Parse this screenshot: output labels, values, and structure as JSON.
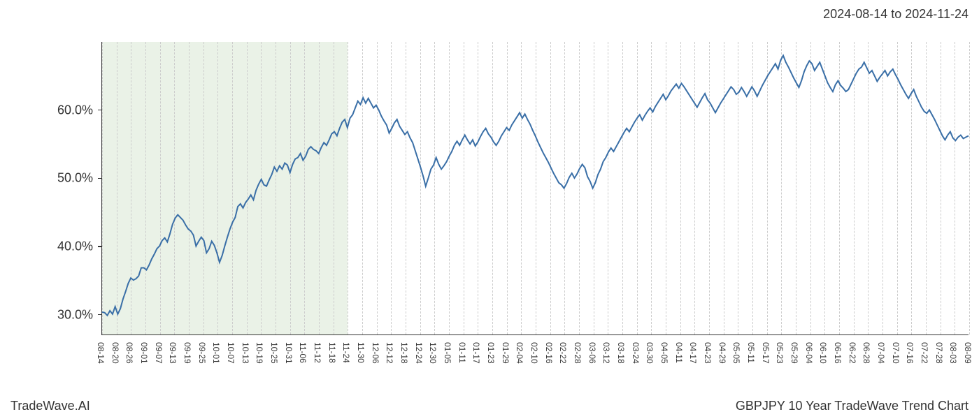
{
  "date_range_label": "2024-08-14 to 2024-11-24",
  "footer_left": "TradeWave.AI",
  "footer_right": "GBPJPY 10 Year TradeWave Trend Chart",
  "chart": {
    "type": "line",
    "background_color": "#ffffff",
    "line_color": "#3a6fa7",
    "line_width": 2,
    "grid_color": "#cccccc",
    "grid_dash": "4,4",
    "axis_color": "#333333",
    "highlight_band": {
      "color": "#d9e8d4",
      "opacity": 0.55,
      "x_start_index": 0,
      "x_end_index": 17
    },
    "ylim": [
      27,
      70
    ],
    "y_ticks": [
      {
        "value": 30,
        "label": "30.0%"
      },
      {
        "value": 40,
        "label": "40.0%"
      },
      {
        "value": 50,
        "label": "50.0%"
      },
      {
        "value": 60,
        "label": "60.0%"
      }
    ],
    "y_label_fontsize": 18,
    "x_label_fontsize": 12,
    "x_label_rotation": 90,
    "x_labels": [
      "08-14",
      "08-20",
      "08-26",
      "09-01",
      "09-07",
      "09-13",
      "09-19",
      "09-25",
      "10-01",
      "10-07",
      "10-13",
      "10-19",
      "10-25",
      "10-31",
      "11-06",
      "11-12",
      "11-18",
      "11-24",
      "11-30",
      "12-06",
      "12-12",
      "12-18",
      "12-24",
      "12-30",
      "01-05",
      "01-11",
      "01-17",
      "01-23",
      "01-29",
      "02-04",
      "02-10",
      "02-16",
      "02-22",
      "02-28",
      "03-06",
      "03-12",
      "03-18",
      "03-24",
      "03-30",
      "04-05",
      "04-11",
      "04-17",
      "04-23",
      "04-29",
      "05-05",
      "05-11",
      "05-17",
      "05-23",
      "05-29",
      "06-04",
      "06-10",
      "06-16",
      "06-22",
      "06-28",
      "07-04",
      "07-10",
      "07-16",
      "07-22",
      "07-28",
      "08-03",
      "08-09"
    ],
    "series": {
      "values": [
        30.3,
        30.2,
        29.8,
        30.5,
        30.0,
        31.1,
        30.0,
        30.8,
        32.2,
        33.3,
        34.5,
        35.3,
        35.0,
        35.2,
        35.6,
        36.8,
        36.8,
        36.5,
        37.2,
        38.1,
        38.8,
        39.6,
        40.0,
        40.8,
        41.2,
        40.6,
        41.8,
        43.2,
        44.1,
        44.6,
        44.2,
        43.8,
        43.1,
        42.5,
        42.2,
        41.6,
        40.0,
        40.7,
        41.3,
        40.8,
        39.0,
        39.6,
        40.7,
        40.1,
        39.0,
        37.6,
        38.6,
        40.0,
        41.3,
        42.5,
        43.5,
        44.2,
        45.8,
        46.2,
        45.6,
        46.4,
        46.9,
        47.5,
        46.8,
        48.2,
        49.1,
        49.8,
        49.0,
        48.8,
        49.7,
        50.5,
        51.6,
        51.0,
        51.8,
        51.3,
        52.2,
        51.9,
        50.8,
        52.0,
        52.8,
        53.0,
        53.6,
        52.6,
        53.2,
        54.2,
        54.6,
        54.2,
        54.0,
        53.6,
        54.5,
        55.2,
        54.8,
        55.6,
        56.5,
        56.8,
        56.2,
        57.3,
        58.2,
        58.6,
        57.4,
        58.8,
        59.3,
        60.3,
        61.3,
        60.8,
        61.8,
        61.0,
        61.7,
        61.0,
        60.3,
        60.7,
        60.0,
        59.1,
        58.4,
        57.8,
        56.6,
        57.3,
        58.1,
        58.6,
        57.6,
        57.0,
        56.4,
        56.8,
        55.9,
        55.2,
        54.0,
        52.8,
        51.6,
        50.3,
        48.8,
        50.0,
        51.3,
        51.9,
        53.0,
        52.0,
        51.3,
        51.8,
        52.4,
        53.2,
        53.9,
        54.8,
        55.4,
        54.8,
        55.6,
        56.3,
        55.6,
        55.0,
        55.6,
        54.7,
        55.3,
        56.1,
        56.8,
        57.3,
        56.5,
        56.0,
        55.3,
        54.8,
        55.4,
        56.2,
        56.8,
        57.4,
        57.0,
        57.8,
        58.4,
        59.0,
        59.6,
        58.8,
        59.4,
        58.6,
        57.9,
        57.0,
        56.2,
        55.3,
        54.5,
        53.7,
        53.0,
        52.3,
        51.5,
        50.7,
        50.0,
        49.3,
        49.0,
        48.5,
        49.2,
        50.1,
        50.7,
        50.0,
        50.6,
        51.4,
        52.0,
        51.5,
        50.2,
        49.5,
        48.5,
        49.3,
        50.5,
        51.3,
        52.4,
        53.0,
        53.8,
        54.4,
        53.9,
        54.6,
        55.3,
        56.0,
        56.7,
        57.3,
        56.8,
        57.5,
        58.2,
        58.8,
        59.3,
        58.5,
        59.2,
        59.8,
        60.3,
        59.7,
        60.5,
        61.1,
        61.7,
        62.3,
        61.5,
        62.1,
        62.8,
        63.3,
        63.8,
        63.2,
        63.9,
        63.4,
        62.8,
        62.2,
        61.6,
        61.0,
        60.4,
        61.1,
        61.8,
        62.4,
        61.5,
        61.0,
        60.3,
        59.6,
        60.3,
        61.0,
        61.6,
        62.2,
        62.8,
        63.4,
        63.0,
        62.3,
        62.6,
        63.3,
        62.7,
        62.0,
        62.7,
        63.4,
        62.8,
        62.0,
        62.8,
        63.6,
        64.3,
        65.0,
        65.6,
        66.2,
        66.8,
        66.0,
        67.3,
        68.0,
        67.0,
        66.3,
        65.5,
        64.7,
        64.0,
        63.3,
        64.3,
        65.6,
        66.5,
        67.2,
        66.8,
        65.8,
        66.4,
        67.0,
        66.0,
        65.0,
        64.0,
        63.3,
        62.7,
        63.7,
        64.3,
        63.6,
        63.2,
        62.7,
        63.0,
        63.8,
        64.6,
        65.4,
        66.0,
        66.3,
        67.0,
        66.2,
        65.4,
        65.8,
        65.0,
        64.2,
        64.8,
        65.3,
        65.8,
        65.0,
        65.6,
        66.0,
        65.2,
        64.5,
        63.7,
        63.0,
        62.3,
        61.7,
        62.4,
        63.0,
        62.0,
        61.2,
        60.4,
        59.8,
        59.5,
        60.0,
        59.3,
        58.6,
        57.8,
        57.0,
        56.2,
        55.6,
        56.3,
        56.8,
        55.9,
        55.5,
        56.0,
        56.3,
        55.8,
        56.0,
        56.2
      ]
    }
  }
}
